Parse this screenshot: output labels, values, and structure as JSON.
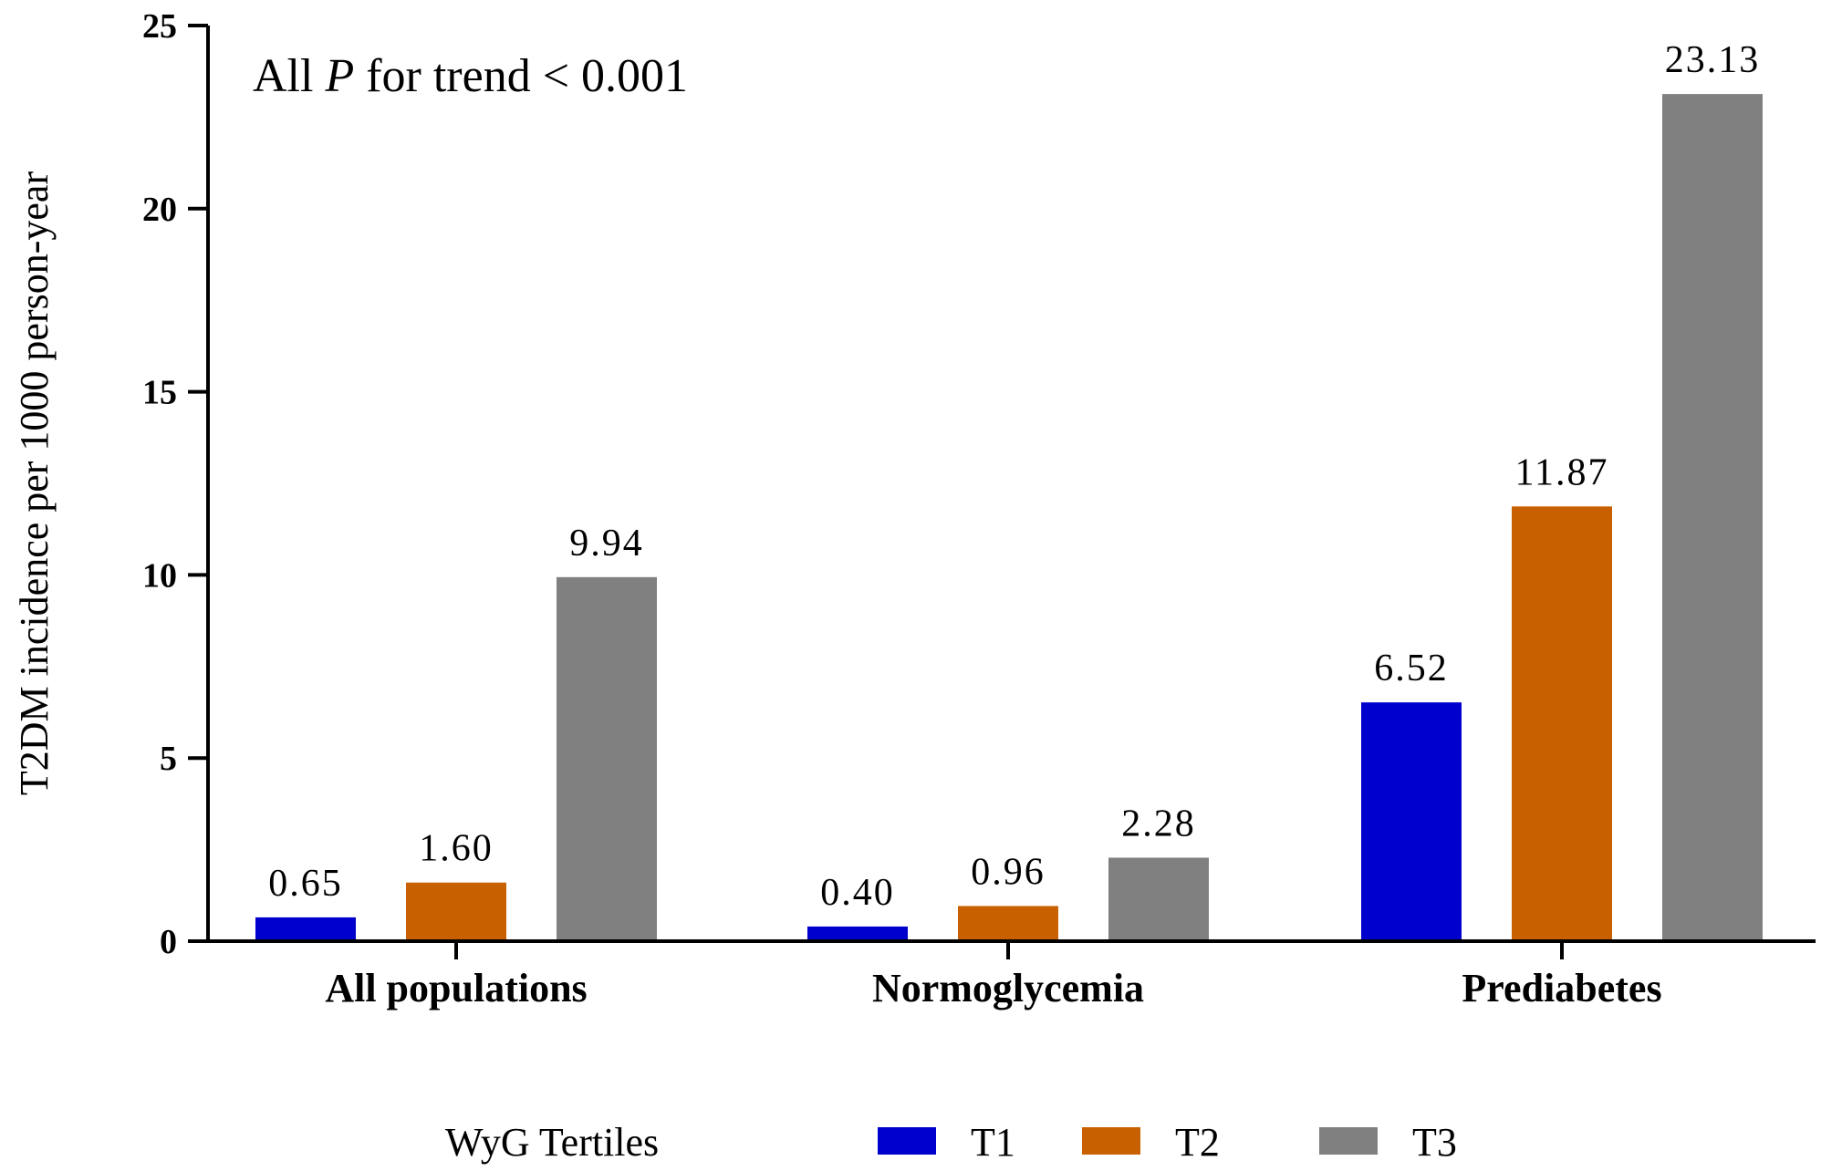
{
  "chart_data": {
    "type": "bar",
    "title": "",
    "xlabel": "",
    "ylabel": "T2DM incidence per 1000 person-year",
    "ylim": [
      0,
      25
    ],
    "yticks": [
      "0",
      "5",
      "10",
      "15",
      "20",
      "25"
    ],
    "grid": false,
    "categories": [
      "All populations",
      "Normoglycemia",
      "Prediabetes"
    ],
    "series": [
      {
        "name": "T1",
        "color": "#0000CC",
        "values": [
          0.65,
          0.4,
          6.52
        ],
        "labels": [
          "0.65",
          "0.40",
          "6.52"
        ]
      },
      {
        "name": "T2",
        "color": "#C86000",
        "values": [
          1.6,
          0.96,
          11.87
        ],
        "labels": [
          "1.60",
          "0.96",
          "11.87"
        ]
      },
      {
        "name": "T3",
        "color": "#808080",
        "values": [
          9.94,
          2.28,
          23.13
        ],
        "labels": [
          "9.94",
          "2.28",
          "23.13"
        ]
      }
    ],
    "annotation": {
      "prefix": "All ",
      "italic": "P",
      "suffix": " for trend < 0.001"
    },
    "legend": {
      "title": "WyG Tertiles",
      "placement": "bottom"
    }
  }
}
